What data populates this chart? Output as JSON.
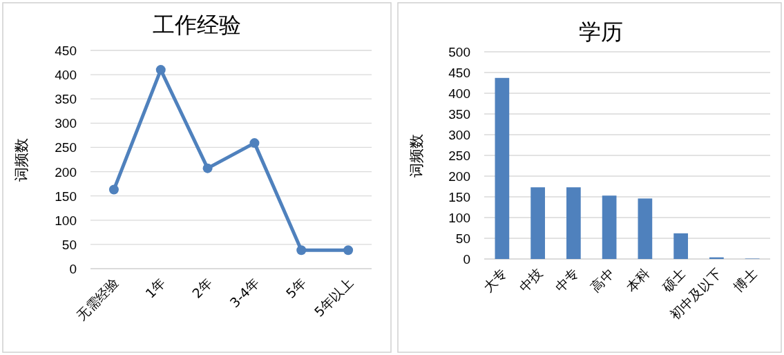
{
  "chart_data": [
    {
      "type": "line",
      "title": "工作经验",
      "ylabel": "词频数",
      "categories": [
        "无需经验",
        "1年",
        "2年",
        "3-4年",
        "5年",
        "5年以上"
      ],
      "series": [
        {
          "color": "#4f81bd",
          "values": [
            163,
            410,
            207,
            259,
            38,
            38
          ]
        }
      ],
      "ylim": [
        0,
        450
      ],
      "yticks": [
        0,
        50,
        100,
        150,
        200,
        250,
        300,
        350,
        400,
        450
      ],
      "grid": "y",
      "marker": "circle",
      "line_style": "solid"
    },
    {
      "type": "bar",
      "title": "学历",
      "ylabel": "词频数",
      "categories": [
        "大专",
        "中技",
        "中专",
        "高中",
        "本科",
        "硕士",
        "初中及以下",
        "博士"
      ],
      "series": [
        {
          "color": "#4f81bd",
          "values": [
            437,
            173,
            173,
            153,
            146,
            62,
            4,
            1
          ]
        }
      ],
      "ylim": [
        0,
        500
      ],
      "yticks": [
        0,
        50,
        100,
        150,
        200,
        250,
        300,
        350,
        400,
        450,
        500
      ],
      "grid": "y"
    }
  ]
}
